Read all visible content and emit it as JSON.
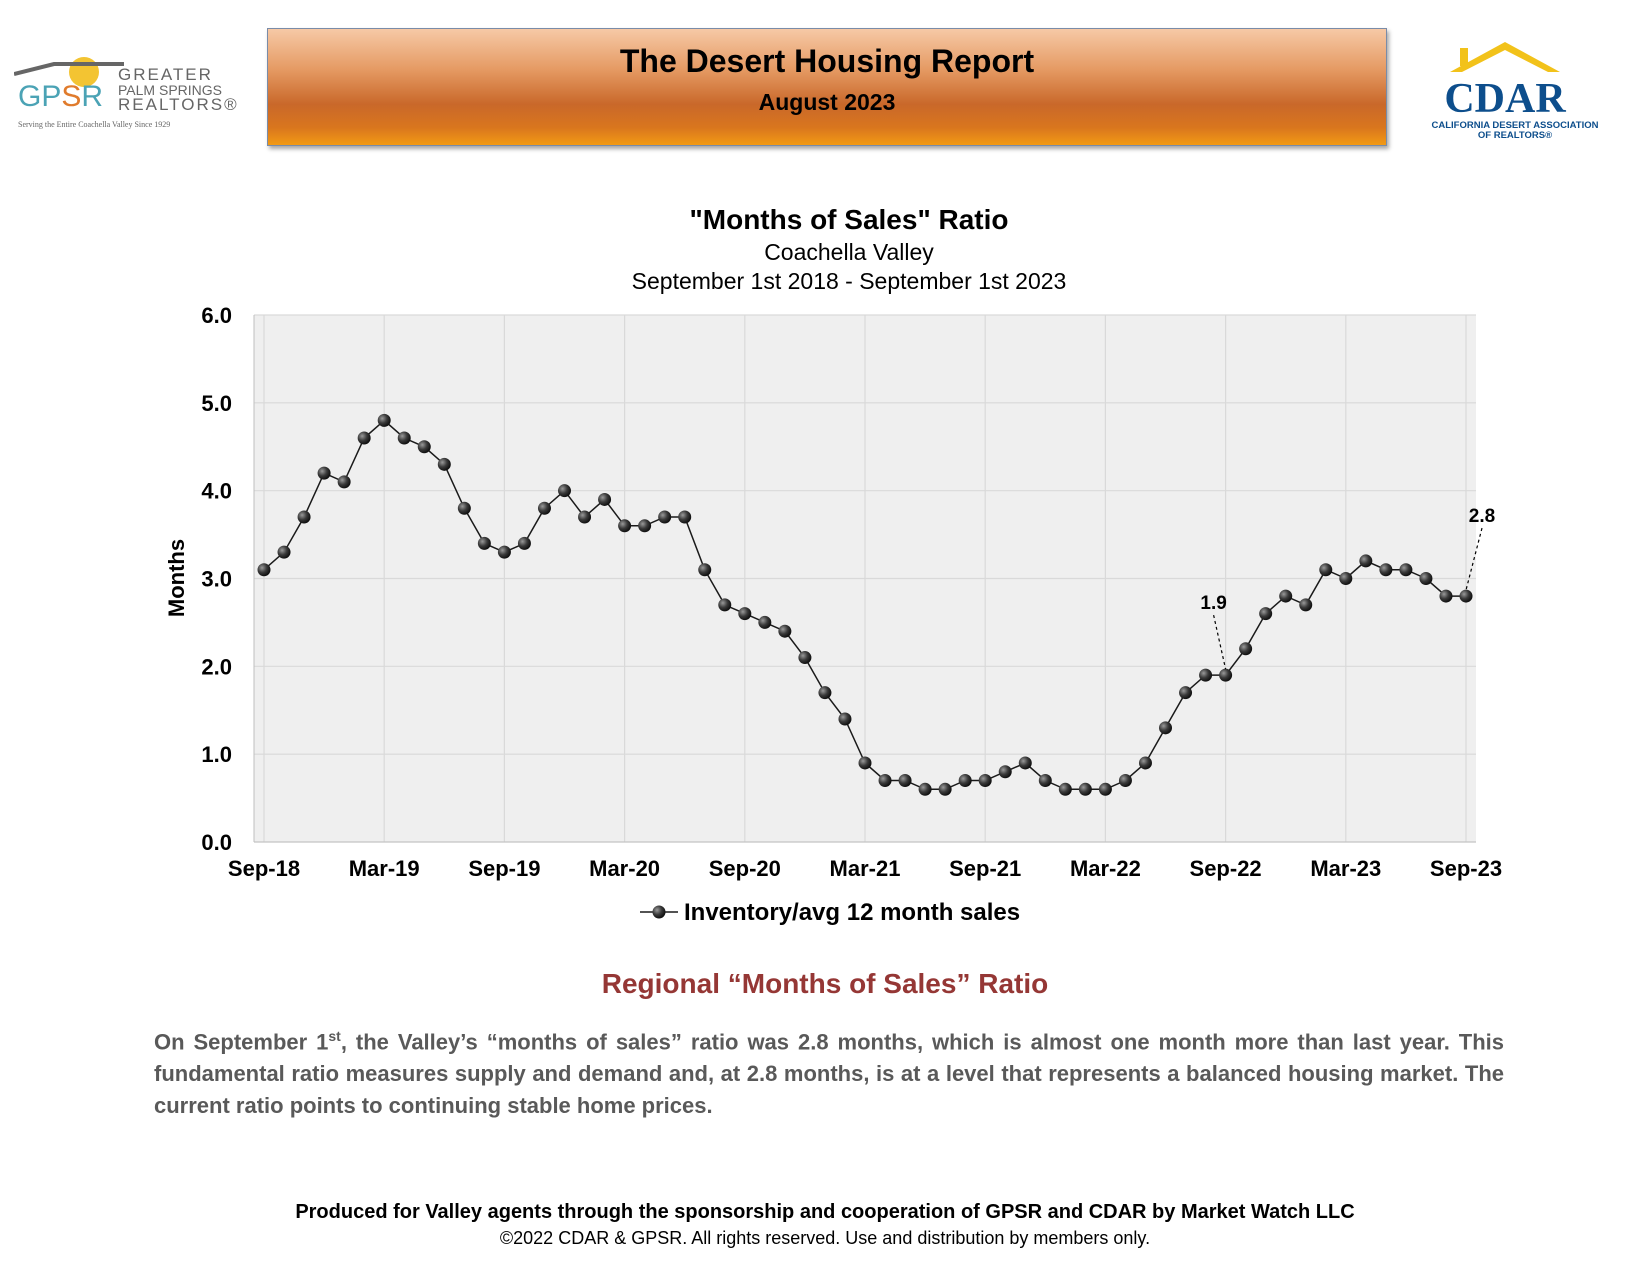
{
  "header": {
    "title": "The Desert Housing Report",
    "subtitle": "August 2023"
  },
  "logos": {
    "gpsr": {
      "mark": "GPSR",
      "line1": "GREATER",
      "line2": "PALM SPRINGS",
      "line3": "REALTORS®",
      "tagline": "Serving the Entire Coachella Valley Since 1929"
    },
    "cdar": {
      "mark": "CDAR",
      "line1": "CALIFORNIA DESERT ASSOCIATION",
      "line2": "OF REALTORS®"
    }
  },
  "chart_data": {
    "type": "line",
    "title": "\"Months of Sales\" Ratio",
    "subtitle": "Coachella Valley",
    "subtitle2": "September 1st 2018 - September 1st 2023",
    "xlabel": "",
    "ylabel": "Months",
    "ylim": [
      0,
      6
    ],
    "y_ticks": [
      "0.0",
      "1.0",
      "2.0",
      "3.0",
      "4.0",
      "5.0",
      "6.0"
    ],
    "x_tick_labels": [
      "Sep-18",
      "Mar-19",
      "Sep-19",
      "Mar-20",
      "Sep-20",
      "Mar-21",
      "Sep-21",
      "Mar-22",
      "Sep-22",
      "Mar-23",
      "Sep-23"
    ],
    "grid": true,
    "legend_position": "bottom",
    "series": [
      {
        "name": "Inventory/avg 12 month sales",
        "x": [
          "Sep-18",
          "Oct-18",
          "Nov-18",
          "Dec-18",
          "Jan-19",
          "Feb-19",
          "Mar-19",
          "Apr-19",
          "May-19",
          "Jun-19",
          "Jul-19",
          "Aug-19",
          "Sep-19",
          "Oct-19",
          "Nov-19",
          "Dec-19",
          "Jan-20",
          "Feb-20",
          "Mar-20",
          "Apr-20",
          "May-20",
          "Jun-20",
          "Jul-20",
          "Aug-20",
          "Sep-20",
          "Oct-20",
          "Nov-20",
          "Dec-20",
          "Jan-21",
          "Feb-21",
          "Mar-21",
          "Apr-21",
          "May-21",
          "Jun-21",
          "Jul-21",
          "Aug-21",
          "Sep-21",
          "Oct-21",
          "Nov-21",
          "Dec-21",
          "Jan-22",
          "Feb-22",
          "Mar-22",
          "Apr-22",
          "May-22",
          "Jun-22",
          "Jul-22",
          "Aug-22",
          "Sep-22",
          "Oct-22",
          "Nov-22",
          "Dec-22",
          "Jan-23",
          "Feb-23",
          "Mar-23",
          "Apr-23",
          "May-23",
          "Jun-23",
          "Jul-23",
          "Aug-23",
          "Sep-23"
        ],
        "values": [
          3.1,
          3.3,
          3.7,
          4.2,
          4.1,
          4.6,
          4.8,
          4.6,
          4.5,
          4.3,
          3.8,
          3.4,
          3.3,
          3.4,
          3.8,
          4.0,
          3.7,
          3.9,
          3.6,
          3.6,
          3.7,
          3.7,
          3.1,
          2.7,
          2.6,
          2.5,
          2.4,
          2.1,
          1.7,
          1.4,
          0.9,
          0.7,
          0.7,
          0.6,
          0.6,
          0.7,
          0.7,
          0.8,
          0.9,
          0.7,
          0.6,
          0.6,
          0.6,
          0.7,
          0.9,
          1.3,
          1.7,
          1.9,
          1.9,
          2.2,
          2.6,
          2.8,
          2.7,
          3.1,
          3.0,
          3.2,
          3.1,
          3.1,
          3.0,
          2.8,
          2.8
        ]
      }
    ],
    "annotations": [
      {
        "label": "1.9",
        "x": "Sep-22",
        "y": 1.9
      },
      {
        "label": "2.8",
        "x": "Sep-23",
        "y": 2.8
      }
    ]
  },
  "section": {
    "heading": "Regional “Months of Sales” Ratio",
    "para_start": "On September 1",
    "para_sup": "st",
    "para_rest": ", the Valley’s “months of sales” ratio was 2.8 months, which is almost one month more than last year. This fundamental ratio measures supply and demand and, at 2.8 months, is at a level that represents a balanced housing market. The current ratio points to continuing stable home prices."
  },
  "footer": {
    "line1": "Produced for Valley agents through the sponsorship and cooperation of GPSR and CDAR by Market Watch LLC",
    "line2": "©2022 CDAR & GPSR.  All rights reserved.  Use and distribution by members only."
  },
  "colors": {
    "banner_orange": "#c9682a",
    "heading_red": "#953735",
    "plot_bg": "#efefef",
    "gpsr_teal": "#4ba3b5",
    "gpsr_orange": "#e07b2c",
    "cdar_blue": "#0d4e8c",
    "cdar_yellow": "#f2c21a"
  }
}
